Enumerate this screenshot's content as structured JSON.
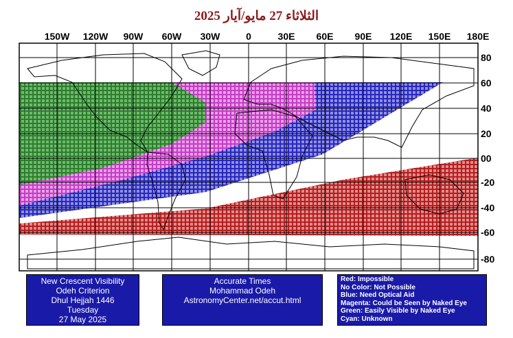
{
  "title": "الثلاثاء 27 مايو/آيار 2025",
  "longitude_labels": [
    "150W",
    "120W",
    "90W",
    "60W",
    "30W",
    "0",
    "30E",
    "60E",
    "90E",
    "120E",
    "150E",
    "180E"
  ],
  "latitude_labels": [
    "80",
    "60",
    "40",
    "20",
    "00",
    "-20",
    "-40",
    "-60",
    "-80"
  ],
  "colors": {
    "red_zone": "#b02020",
    "blue_zone": "#2828b8",
    "magenta_zone": "#d24cd2",
    "green_zone": "#2e7d2e",
    "box": "#1a1aa8",
    "title": "#8b1a1a"
  },
  "zones": [
    {
      "name": "Red",
      "meaning": "Impossible"
    },
    {
      "name": "Blue",
      "meaning": "Need Optical Aid"
    },
    {
      "name": "Magenta",
      "meaning": "Could be Seen by Naked Eye"
    },
    {
      "name": "Green",
      "meaning": "Easily Visible by Naked Eye"
    }
  ],
  "info_left": {
    "line1": "New Crescent Visibility",
    "line2": "Odeh Criterion",
    "line3": "Dhul Hejjah 1446",
    "line4": "Tuesday",
    "line5": "27 May 2025"
  },
  "info_center": {
    "line1": "Accurate Times",
    "line2": "Mohammad Odeh",
    "line3": "AstronomyCenter.net/accut.html"
  },
  "legend": [
    "Red: Impossible",
    "No Color: Not Possible",
    "Blue: Need Optical Aid",
    "Magenta: Could be Seen by Naked Eye",
    "Green: Easily Visible by Naked Eye",
    "Cyan: Unknown"
  ]
}
